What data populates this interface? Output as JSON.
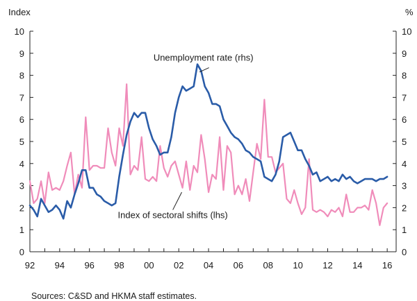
{
  "chart_data": {
    "type": "line",
    "left_unit": "Index",
    "right_unit": "%",
    "ylim": [
      0,
      10
    ],
    "y_ticks": [
      0,
      1,
      2,
      3,
      4,
      5,
      6,
      7,
      8,
      9,
      10
    ],
    "x_range": [
      1992,
      2016.6
    ],
    "x_ticks": [
      {
        "x": 1992,
        "label": "92"
      },
      {
        "x": 1994,
        "label": "94"
      },
      {
        "x": 1996,
        "label": "96"
      },
      {
        "x": 1998,
        "label": "98"
      },
      {
        "x": 2000,
        "label": "00"
      },
      {
        "x": 2002,
        "label": "02"
      },
      {
        "x": 2004,
        "label": "04"
      },
      {
        "x": 2006,
        "label": "06"
      },
      {
        "x": 2008,
        "label": "08"
      },
      {
        "x": 2010,
        "label": "10"
      },
      {
        "x": 2012,
        "label": "12"
      },
      {
        "x": 2014,
        "label": "14"
      },
      {
        "x": 2016,
        "label": "16"
      }
    ],
    "series": [
      {
        "name": "Unemployment rate (rhs)",
        "axis": "right",
        "color": "#2a5ca8",
        "x": [
          1992.0,
          1992.25,
          1992.5,
          1992.75,
          1993.0,
          1993.25,
          1993.5,
          1993.75,
          1994.0,
          1994.25,
          1994.5,
          1994.75,
          1995.0,
          1995.25,
          1995.5,
          1995.75,
          1996.0,
          1996.25,
          1996.5,
          1996.75,
          1997.0,
          1997.25,
          1997.5,
          1997.75,
          1998.0,
          1998.25,
          1998.5,
          1998.75,
          1999.0,
          1999.25,
          1999.5,
          1999.75,
          2000.0,
          2000.25,
          2000.5,
          2000.75,
          2001.0,
          2001.25,
          2001.5,
          2001.75,
          2002.0,
          2002.25,
          2002.5,
          2002.75,
          2003.0,
          2003.25,
          2003.5,
          2003.75,
          2004.0,
          2004.25,
          2004.5,
          2004.75,
          2005.0,
          2005.25,
          2005.5,
          2005.75,
          2006.0,
          2006.25,
          2006.5,
          2006.75,
          2007.0,
          2007.25,
          2007.5,
          2007.75,
          2008.0,
          2008.25,
          2008.5,
          2008.75,
          2009.0,
          2009.25,
          2009.5,
          2009.75,
          2010.0,
          2010.25,
          2010.5,
          2010.75,
          2011.0,
          2011.25,
          2011.5,
          2011.75,
          2012.0,
          2012.25,
          2012.5,
          2012.75,
          2013.0,
          2013.25,
          2013.5,
          2013.75,
          2014.0,
          2014.25,
          2014.5,
          2014.75,
          2015.0,
          2015.25,
          2015.5,
          2015.75,
          2016.0
        ],
        "values": [
          2.1,
          1.9,
          1.6,
          2.4,
          2.1,
          1.8,
          1.9,
          2.1,
          1.9,
          1.5,
          2.3,
          2.0,
          2.6,
          3.1,
          3.7,
          3.7,
          2.9,
          2.9,
          2.6,
          2.5,
          2.3,
          2.2,
          2.1,
          2.2,
          3.4,
          4.4,
          5.3,
          5.9,
          6.3,
          6.1,
          6.3,
          6.3,
          5.6,
          5.1,
          4.8,
          4.4,
          4.5,
          4.5,
          5.2,
          6.3,
          7.0,
          7.5,
          7.3,
          7.4,
          7.5,
          8.5,
          8.2,
          7.5,
          7.2,
          6.7,
          6.7,
          6.6,
          6.0,
          5.7,
          5.4,
          5.2,
          5.1,
          4.9,
          4.6,
          4.5,
          4.3,
          4.2,
          4.1,
          3.4,
          3.3,
          3.2,
          3.5,
          4.1,
          5.2,
          5.3,
          5.4,
          5.0,
          4.6,
          4.6,
          4.2,
          3.9,
          3.5,
          3.6,
          3.2,
          3.3,
          3.4,
          3.2,
          3.3,
          3.2,
          3.5,
          3.3,
          3.4,
          3.2,
          3.1,
          3.2,
          3.3,
          3.3,
          3.3,
          3.2,
          3.3,
          3.3,
          3.4
        ]
      },
      {
        "name": "Index of sectoral shifts (lhs)",
        "axis": "left",
        "color": "#f08cba",
        "x": [
          1992.0,
          1992.25,
          1992.5,
          1992.75,
          1993.0,
          1993.25,
          1993.5,
          1993.75,
          1994.0,
          1994.25,
          1994.5,
          1994.75,
          1995.0,
          1995.25,
          1995.5,
          1995.75,
          1996.0,
          1996.25,
          1996.5,
          1996.75,
          1997.0,
          1997.25,
          1997.5,
          1997.75,
          1998.0,
          1998.25,
          1998.5,
          1998.75,
          1999.0,
          1999.25,
          1999.5,
          1999.75,
          2000.0,
          2000.25,
          2000.5,
          2000.75,
          2001.0,
          2001.25,
          2001.5,
          2001.75,
          2002.0,
          2002.25,
          2002.5,
          2002.75,
          2003.0,
          2003.25,
          2003.5,
          2003.75,
          2004.0,
          2004.25,
          2004.5,
          2004.75,
          2005.0,
          2005.25,
          2005.5,
          2005.75,
          2006.0,
          2006.25,
          2006.5,
          2006.75,
          2007.0,
          2007.25,
          2007.5,
          2007.75,
          2008.0,
          2008.25,
          2008.5,
          2008.75,
          2009.0,
          2009.25,
          2009.5,
          2009.75,
          2010.0,
          2010.25,
          2010.5,
          2010.75,
          2011.0,
          2011.25,
          2011.5,
          2011.75,
          2012.0,
          2012.25,
          2012.5,
          2012.75,
          2013.0,
          2013.25,
          2013.5,
          2013.75,
          2014.0,
          2014.25,
          2014.5,
          2014.75,
          2015.0,
          2015.25,
          2015.5,
          2015.75,
          2016.0
        ],
        "values": [
          3.2,
          2.2,
          2.4,
          3.2,
          2.2,
          3.6,
          2.8,
          2.9,
          2.8,
          3.2,
          3.9,
          4.5,
          2.6,
          3.5,
          2.9,
          6.1,
          3.7,
          3.9,
          3.9,
          3.8,
          3.8,
          5.6,
          4.5,
          3.9,
          5.6,
          4.8,
          7.6,
          3.5,
          3.9,
          3.7,
          5.2,
          3.3,
          3.2,
          3.4,
          3.2,
          4.8,
          3.8,
          3.4,
          3.9,
          4.1,
          3.5,
          2.9,
          4.1,
          2.8,
          3.9,
          3.6,
          5.3,
          4.2,
          2.7,
          3.5,
          3.3,
          5.2,
          2.8,
          4.8,
          4.5,
          2.6,
          3.0,
          2.6,
          3.3,
          2.3,
          3.6,
          4.9,
          4.2,
          6.9,
          4.3,
          4.3,
          3.6,
          3.8,
          4.0,
          2.4,
          2.2,
          2.8,
          2.2,
          1.7,
          2.0,
          4.2,
          1.9,
          1.8,
          1.9,
          1.8,
          1.6,
          1.9,
          1.8,
          2.0,
          1.6,
          2.6,
          1.8,
          1.8,
          2.0,
          2.0,
          2.1,
          1.9,
          2.8,
          2.2,
          1.2,
          2.0,
          2.2
        ]
      }
    ],
    "annotations": [
      {
        "text": "Unemployment rate (rhs)",
        "arrow_from": [
          2003.75,
          8.6
        ],
        "arrow_to": [
          2003.3,
          8.15
        ]
      },
      {
        "text": "Index of sectoral shifts (lhs)",
        "arrow_from": [
          2001.6,
          1.9
        ],
        "arrow_to": [
          2002.2,
          2.7
        ]
      }
    ]
  },
  "source": "Sources: C&SD and HKMA staff estimates."
}
